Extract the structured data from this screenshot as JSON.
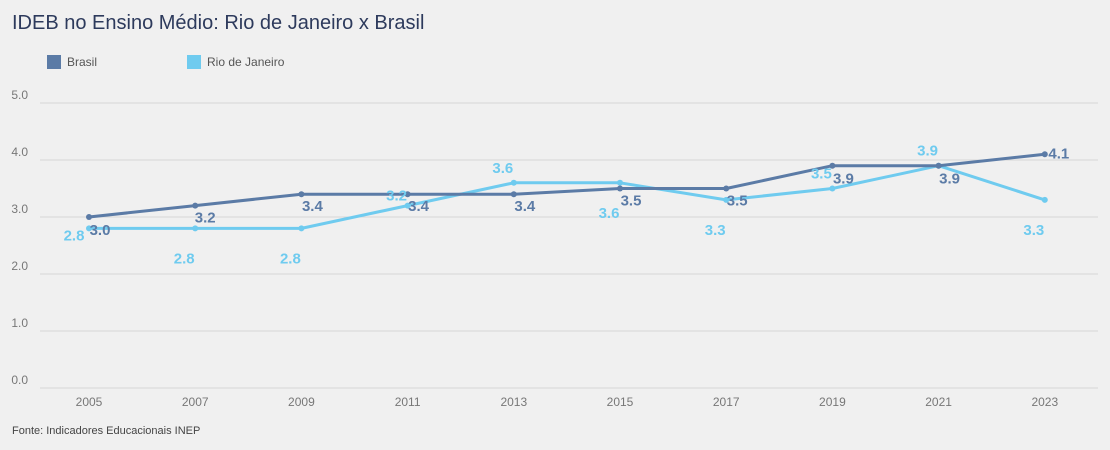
{
  "title": "IDEB no Ensino Médio: Rio de Janeiro x Brasil",
  "source": "Fonte: Indicadores Educacionais INEP",
  "chart_data": {
    "type": "line",
    "title": "IDEB no Ensino Médio: Rio de Janeiro x Brasil",
    "xlabel": "",
    "ylabel": "",
    "categories": [
      "2005",
      "2007",
      "2009",
      "2011",
      "2013",
      "2015",
      "2017",
      "2019",
      "2021",
      "2023"
    ],
    "ylim": [
      0,
      5
    ],
    "yticks": [
      "0.0",
      "1.0",
      "2.0",
      "3.0",
      "4.0",
      "5.0"
    ],
    "grid": true,
    "legend_position": "top-left",
    "series": [
      {
        "name": "Brasil",
        "color": "#5b7ba6",
        "values": [
          3.0,
          3.2,
          3.4,
          3.4,
          3.4,
          3.5,
          3.5,
          3.9,
          3.9,
          4.1
        ],
        "labels": [
          "3.0",
          "3.2",
          "3.4",
          "3.4",
          "3.4",
          "3.5",
          "3.5",
          "3.9",
          "3.9",
          "4.1"
        ]
      },
      {
        "name": "Rio de Janeiro",
        "color": "#6fcbef",
        "values": [
          2.8,
          2.8,
          2.8,
          3.2,
          3.6,
          3.6,
          3.3,
          3.5,
          3.9,
          3.3
        ],
        "labels": [
          "2.8",
          "2.8",
          "2.8",
          "3.2",
          "3.6",
          "3.6",
          "3.3",
          "3.5",
          "3.9",
          "3.3"
        ]
      }
    ]
  }
}
